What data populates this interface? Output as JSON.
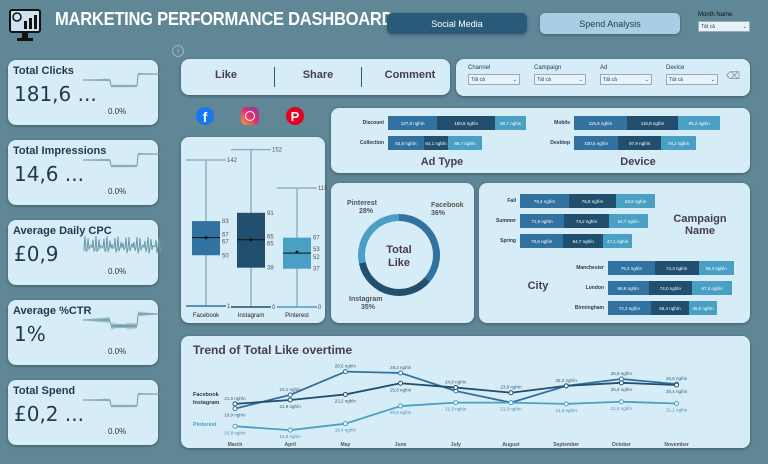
{
  "header": {
    "title": "MARKETING PERFORMANCE DASHBOARD",
    "nav": [
      {
        "label": "Social Media",
        "active": true
      },
      {
        "label": "Spend Analysis",
        "active": false
      }
    ],
    "month_filter": {
      "label": "Month Name",
      "value": "Tất cả"
    }
  },
  "colors": {
    "background": "#5f8796",
    "card": "#d6ecf7",
    "facebook": "#3272a1",
    "instagram": "#214f6d",
    "pinterest": "#4a9fc4",
    "active_nav": "#2a5a7a",
    "inactive_nav": "#a9cde3"
  },
  "kpis": [
    {
      "label": "Total Clicks",
      "value": "181,6 ...",
      "change": "0.0%"
    },
    {
      "label": "Total Impressions",
      "value": "14,6 ...",
      "change": "0.0%"
    },
    {
      "label": "Average Daily CPC",
      "value": "£0,9",
      "change": "0.0%"
    },
    {
      "label": "Average %CTR",
      "value": "1%",
      "change": "0.0%"
    },
    {
      "label": "Total Spend",
      "value": "£0,2 ...",
      "change": "0.0%"
    }
  ],
  "metric_tabs": [
    "Like",
    "Share",
    "Comment"
  ],
  "filters": [
    {
      "label": "Channel",
      "value": "Tất cả"
    },
    {
      "label": "Campaign",
      "value": "Tất cả"
    },
    {
      "label": "Ad",
      "value": "Tất cả"
    },
    {
      "label": "Device",
      "value": "Tất cả"
    }
  ],
  "social_icons": [
    "facebook-icon",
    "instagram-icon",
    "pinterest-icon"
  ],
  "chart_data": [
    {
      "type": "boxplot",
      "categories": [
        "Facebook",
        "Instagram",
        "Pinterest"
      ],
      "boxes": [
        {
          "min": 1,
          "q1": 50,
          "median": 67,
          "mean": 67,
          "q3": 83,
          "max": 142
        },
        {
          "min": 0,
          "q1": 38,
          "median": 65,
          "mean": 65,
          "q3": 91,
          "max": 152
        },
        {
          "min": 0,
          "q1": 37,
          "median": 52,
          "mean": 53,
          "q3": 67,
          "max": 115
        }
      ]
    },
    {
      "type": "bar",
      "stacked": true,
      "title": "Ad Type",
      "categories": [
        "Discount",
        "Collection"
      ],
      "series": [
        {
          "values": [
            127.8,
            92.8
          ]
        },
        {
          "values": [
            150.6,
            64.1
          ]
        },
        {
          "values": [
            80.7,
            86.7
          ]
        }
      ],
      "labels": [
        [
          "127,8 nghìn",
          "150,6 nghìn",
          "80,7 nghìn"
        ],
        [
          "92,8 nghìn",
          "64,1 nghìn",
          "86,7 nghìn"
        ]
      ]
    },
    {
      "type": "bar",
      "stacked": true,
      "title": "Device",
      "categories": [
        "Mobile",
        "Desktop"
      ],
      "series": [
        {
          "values": [
            119.9,
            100.5
          ]
        },
        {
          "values": [
            116.8,
            97.9
          ]
        },
        {
          "values": [
            95.2,
            78.2
          ]
        }
      ],
      "labels": [
        [
          "119,9 nghìn",
          "116,8 nghìn",
          "95,2 nghìn"
        ],
        [
          "100,5 nghìn",
          "97,9 nghìn",
          "78,2 nghìn"
        ]
      ]
    },
    {
      "type": "pie",
      "donut": true,
      "title": "Total Like",
      "slices": [
        {
          "name": "Facebook",
          "value": 36,
          "label": "36%"
        },
        {
          "name": "Instagram",
          "value": 35,
          "label": "35%"
        },
        {
          "name": "Pinterest",
          "value": 28,
          "label": "28%"
        }
      ]
    },
    {
      "type": "bar",
      "stacked": true,
      "title": "Campaign Name",
      "categories": [
        "Fall",
        "Summer",
        "Spring"
      ],
      "series": [
        {
          "values": [
            79.4,
            71.5,
            70.6
          ]
        },
        {
          "values": [
            76.8,
            73.2,
            64.7
          ]
        },
        {
          "values": [
            63.6,
            62.7,
            47.1
          ]
        }
      ],
      "labels": [
        [
          "79,4 nghìn",
          "76,8 nghìn",
          "63,6 nghìn"
        ],
        [
          "71,5 nghìn",
          "73,2 nghìn",
          "62,7 nghìn"
        ],
        [
          "70,6 nghìn",
          "64,7 nghìn",
          "47,1 nghìn"
        ]
      ]
    },
    {
      "type": "bar",
      "stacked": true,
      "title": "City",
      "categories": [
        "Manchester",
        "London",
        "Birmingham"
      ],
      "series": [
        {
          "values": [
            79.3,
            68.8,
            72.3
          ]
        },
        {
          "values": [
            74.3,
            74.0,
            65.4
          ]
        },
        {
          "values": [
            59.4,
            67.4,
            46.6
          ]
        }
      ],
      "labels": [
        [
          "79,3 nghìn",
          "74,3 nghìn",
          "59,4 nghìn"
        ],
        [
          "68,8 nghìn",
          "74,0 nghìn",
          "67,4 nghìn"
        ],
        [
          "72,3 nghìn",
          "65,4 nghìn",
          "46,6 nghìn"
        ]
      ]
    },
    {
      "type": "line",
      "title": "Trend of Total Like overtime",
      "categories": [
        "March",
        "April",
        "May",
        "June",
        "July",
        "August",
        "September",
        "October",
        "November"
      ],
      "series": [
        {
          "name": "Facebook",
          "values": [
            19.9,
            23.1,
            28.5,
            28.2,
            24.0,
            21.3,
            25.2,
            26.8,
            25.6
          ],
          "labels": [
            "19,9 nghìn",
            "23,1 nghìn",
            "28,5 nghìn",
            "28,2 nghìn",
            "",
            "",
            "25,2 nghìn",
            "26,8 nghìn",
            "25,6 nghìn"
          ]
        },
        {
          "name": "Instagram",
          "values": [
            21.0,
            21.9,
            23.2,
            25.8,
            24.8,
            23.6,
            25.2,
            25.9,
            25.4
          ],
          "labels": [
            "21,0 nghìn",
            "21,9 nghìn",
            "23,2 nghìn",
            "25,8 nghìn",
            "24,8 nghìn",
            "23,6 nghìn",
            "",
            "25,9 nghìn",
            "25,4 nghìn"
          ]
        },
        {
          "name": "Pinterest",
          "values": [
            15.8,
            14.9,
            16.4,
            20.5,
            21.3,
            21.3,
            21.0,
            21.5,
            21.1
          ],
          "labels": [
            "15,8 nghìn",
            "14,9 nghìn",
            "16,4 nghìn",
            "20,5 nghìn",
            "21,3 nghìn",
            "21,3 nghìn",
            "21,0 nghìn",
            "21,5 nghìn",
            "21,1 nghìn"
          ]
        }
      ]
    }
  ]
}
